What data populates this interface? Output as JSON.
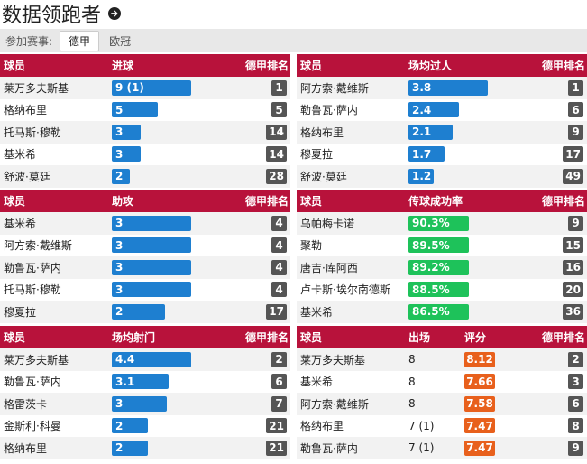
{
  "header": {
    "title": "数据领跑者",
    "arrow_icon": "arrow-right-circle-icon"
  },
  "filter": {
    "label": "参加赛事:",
    "tabs": [
      "德甲",
      "欧冠"
    ],
    "active": 0
  },
  "panels": [
    {
      "headers": {
        "player": "球员",
        "stat": "进球",
        "rank": "德甲排名"
      },
      "bar_color": "#1e7fd0",
      "rows": [
        {
          "player": "莱万多夫斯基",
          "value": "9 (1)",
          "fill": 0.96,
          "rank": "1"
        },
        {
          "player": "格纳布里",
          "value": "5",
          "fill": 0.55,
          "rank": "5"
        },
        {
          "player": "托马斯·穆勒",
          "value": "3",
          "fill": 0.35,
          "rank": "14"
        },
        {
          "player": "基米希",
          "value": "3",
          "fill": 0.35,
          "rank": "14"
        },
        {
          "player": "舒波·莫廷",
          "value": "2",
          "fill": 0.22,
          "rank": "28"
        }
      ]
    },
    {
      "headers": {
        "player": "球员",
        "stat": "场均过人",
        "rank": "德甲排名"
      },
      "bar_color": "#1e7fd0",
      "rows": [
        {
          "player": "阿方索·戴维斯",
          "value": "3.8",
          "fill": 0.96,
          "rank": "1"
        },
        {
          "player": "勒鲁瓦·萨内",
          "value": "2.4",
          "fill": 0.61,
          "rank": "6"
        },
        {
          "player": "格纳布里",
          "value": "2.1",
          "fill": 0.53,
          "rank": "9"
        },
        {
          "player": "穆夏拉",
          "value": "1.7",
          "fill": 0.43,
          "rank": "17"
        },
        {
          "player": "舒波·莫廷",
          "value": "1.2",
          "fill": 0.3,
          "rank": "49"
        }
      ]
    },
    {
      "headers": {
        "player": "球员",
        "stat": "助攻",
        "rank": "德甲排名"
      },
      "bar_color": "#1e7fd0",
      "rows": [
        {
          "player": "基米希",
          "value": "3",
          "fill": 0.96,
          "rank": "4"
        },
        {
          "player": "阿方索·戴维斯",
          "value": "3",
          "fill": 0.96,
          "rank": "4"
        },
        {
          "player": "勒鲁瓦·萨内",
          "value": "3",
          "fill": 0.96,
          "rank": "4"
        },
        {
          "player": "托马斯·穆勒",
          "value": "3",
          "fill": 0.96,
          "rank": "4"
        },
        {
          "player": "穆夏拉",
          "value": "2",
          "fill": 0.64,
          "rank": "17"
        }
      ]
    },
    {
      "headers": {
        "player": "球员",
        "stat": "传球成功率",
        "rank": "德甲排名"
      },
      "bar_color": "#1ec25a",
      "rows": [
        {
          "player": "乌帕梅卡诺",
          "value": "90.3%",
          "fill": 0.73,
          "rank": "9"
        },
        {
          "player": "聚勒",
          "value": "89.5%",
          "fill": 0.73,
          "rank": "15"
        },
        {
          "player": "唐吉·库阿西",
          "value": "89.2%",
          "fill": 0.73,
          "rank": "16"
        },
        {
          "player": "卢卡斯·埃尔南德斯",
          "value": "88.5%",
          "fill": 0.73,
          "rank": "20"
        },
        {
          "player": "基米希",
          "value": "86.5%",
          "fill": 0.73,
          "rank": "36"
        }
      ]
    },
    {
      "headers": {
        "player": "球员",
        "stat": "场均射门",
        "rank": "德甲排名"
      },
      "bar_color": "#1e7fd0",
      "rows": [
        {
          "player": "莱万多夫斯基",
          "value": "4.4",
          "fill": 0.96,
          "rank": "2"
        },
        {
          "player": "勒鲁瓦·萨内",
          "value": "3.1",
          "fill": 0.68,
          "rank": "6"
        },
        {
          "player": "格雷茨卡",
          "value": "3",
          "fill": 0.66,
          "rank": "7"
        },
        {
          "player": "金斯利·科曼",
          "value": "2",
          "fill": 0.44,
          "rank": "21"
        },
        {
          "player": "格纳布里",
          "value": "2",
          "fill": 0.44,
          "rank": "21"
        }
      ]
    },
    {
      "headers": {
        "player": "球员",
        "apps": "出场",
        "rating": "评分",
        "rank": "德甲排名"
      },
      "rating_color": "#e8601c",
      "rows": [
        {
          "player": "莱万多夫斯基",
          "apps": "8",
          "rating": "8.12",
          "rank": "2"
        },
        {
          "player": "基米希",
          "apps": "8",
          "rating": "7.66",
          "rank": "3"
        },
        {
          "player": "阿方索·戴维斯",
          "apps": "8",
          "rating": "7.58",
          "rank": "6"
        },
        {
          "player": "格纳布里",
          "apps": "7 (1)",
          "rating": "7.47",
          "rank": "8"
        },
        {
          "player": "勒鲁瓦·萨内",
          "apps": "7 (1)",
          "rating": "7.47",
          "rank": "9"
        }
      ]
    }
  ]
}
